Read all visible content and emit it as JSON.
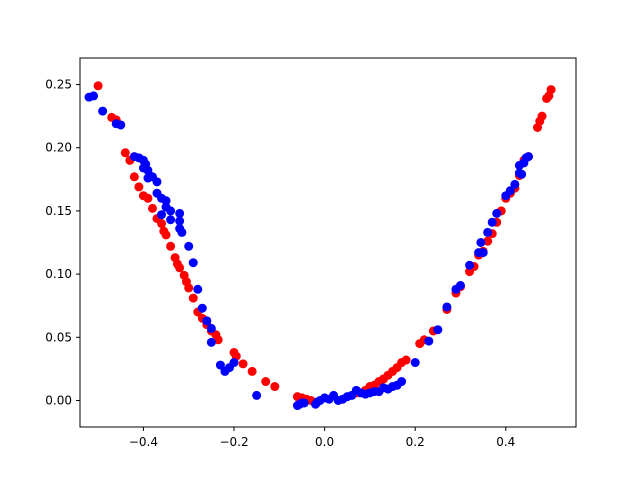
{
  "chart_data": {
    "type": "scatter",
    "title": "",
    "xlabel": "",
    "ylabel": "",
    "xlim": [
      -0.54,
      0.555
    ],
    "ylim": [
      -0.021,
      0.271
    ],
    "grid": false,
    "x_ticks": [
      -0.4,
      -0.2,
      0.0,
      0.2,
      0.4
    ],
    "x_tick_labels": [
      "−0.4",
      "−0.2",
      "0.0",
      "0.2",
      "0.4"
    ],
    "y_ticks": [
      0.0,
      0.05,
      0.1,
      0.15,
      0.2,
      0.25
    ],
    "y_tick_labels": [
      "0.00",
      "0.05",
      "0.10",
      "0.15",
      "0.20",
      "0.25"
    ],
    "series": [
      {
        "color": "#ff0000",
        "points": [
          [
            -0.5,
            0.249
          ],
          [
            -0.47,
            0.224
          ],
          [
            -0.46,
            0.222
          ],
          [
            -0.44,
            0.196
          ],
          [
            -0.43,
            0.19
          ],
          [
            -0.42,
            0.177
          ],
          [
            -0.41,
            0.169
          ],
          [
            -0.4,
            0.162
          ],
          [
            -0.39,
            0.16
          ],
          [
            -0.38,
            0.152
          ],
          [
            -0.37,
            0.144
          ],
          [
            -0.36,
            0.14
          ],
          [
            -0.355,
            0.134
          ],
          [
            -0.35,
            0.131
          ],
          [
            -0.34,
            0.122
          ],
          [
            -0.33,
            0.113
          ],
          [
            -0.325,
            0.108
          ],
          [
            -0.32,
            0.105
          ],
          [
            -0.31,
            0.099
          ],
          [
            -0.305,
            0.094
          ],
          [
            -0.3,
            0.089
          ],
          [
            -0.29,
            0.081
          ],
          [
            -0.28,
            0.07
          ],
          [
            -0.27,
            0.065
          ],
          [
            -0.26,
            0.06
          ],
          [
            -0.25,
            0.055
          ],
          [
            -0.24,
            0.052
          ],
          [
            -0.235,
            0.048
          ],
          [
            -0.2,
            0.038
          ],
          [
            -0.195,
            0.035
          ],
          [
            -0.18,
            0.029
          ],
          [
            -0.16,
            0.023
          ],
          [
            -0.13,
            0.015
          ],
          [
            -0.11,
            0.011
          ],
          [
            -0.06,
            0.003
          ],
          [
            -0.05,
            0.002
          ],
          [
            -0.04,
            0.001
          ],
          [
            -0.03,
            0.0
          ],
          [
            0.07,
            0.006
          ],
          [
            0.09,
            0.008
          ],
          [
            0.1,
            0.011
          ],
          [
            0.11,
            0.012
          ],
          [
            0.12,
            0.015
          ],
          [
            0.13,
            0.017
          ],
          [
            0.14,
            0.02
          ],
          [
            0.15,
            0.023
          ],
          [
            0.16,
            0.026
          ],
          [
            0.17,
            0.03
          ],
          [
            0.18,
            0.032
          ],
          [
            0.21,
            0.045
          ],
          [
            0.22,
            0.048
          ],
          [
            0.24,
            0.055
          ],
          [
            0.27,
            0.072
          ],
          [
            0.29,
            0.085
          ],
          [
            0.3,
            0.09
          ],
          [
            0.32,
            0.102
          ],
          [
            0.33,
            0.106
          ],
          [
            0.34,
            0.115
          ],
          [
            0.35,
            0.118
          ],
          [
            0.36,
            0.126
          ],
          [
            0.37,
            0.132
          ],
          [
            0.38,
            0.141
          ],
          [
            0.39,
            0.15
          ],
          [
            0.4,
            0.16
          ],
          [
            0.41,
            0.164
          ],
          [
            0.42,
            0.168
          ],
          [
            0.43,
            0.178
          ],
          [
            0.44,
            0.19
          ],
          [
            0.45,
            0.193
          ],
          [
            0.47,
            0.216
          ],
          [
            0.475,
            0.221
          ],
          [
            0.48,
            0.225
          ],
          [
            0.49,
            0.239
          ],
          [
            0.495,
            0.241
          ],
          [
            0.5,
            0.246
          ]
        ]
      },
      {
        "color": "#0000ff",
        "points": [
          [
            -0.52,
            0.24
          ],
          [
            -0.51,
            0.241
          ],
          [
            -0.49,
            0.229
          ],
          [
            -0.46,
            0.219
          ],
          [
            -0.45,
            0.218
          ],
          [
            -0.42,
            0.193
          ],
          [
            -0.41,
            0.192
          ],
          [
            -0.4,
            0.19
          ],
          [
            -0.395,
            0.187
          ],
          [
            -0.4,
            0.184
          ],
          [
            -0.39,
            0.182
          ],
          [
            -0.39,
            0.176
          ],
          [
            -0.38,
            0.177
          ],
          [
            -0.37,
            0.173
          ],
          [
            -0.37,
            0.164
          ],
          [
            -0.36,
            0.16
          ],
          [
            -0.35,
            0.158
          ],
          [
            -0.35,
            0.153
          ],
          [
            -0.34,
            0.15
          ],
          [
            -0.36,
            0.147
          ],
          [
            -0.32,
            0.148
          ],
          [
            -0.32,
            0.142
          ],
          [
            -0.34,
            0.143
          ],
          [
            -0.32,
            0.136
          ],
          [
            -0.315,
            0.133
          ],
          [
            -0.3,
            0.122
          ],
          [
            -0.29,
            0.109
          ],
          [
            -0.28,
            0.088
          ],
          [
            -0.27,
            0.073
          ],
          [
            -0.26,
            0.063
          ],
          [
            -0.25,
            0.057
          ],
          [
            -0.25,
            0.046
          ],
          [
            -0.23,
            0.028
          ],
          [
            -0.22,
            0.023
          ],
          [
            -0.21,
            0.026
          ],
          [
            -0.2,
            0.03
          ],
          [
            -0.15,
            0.004
          ],
          [
            -0.06,
            -0.004
          ],
          [
            -0.055,
            -0.003
          ],
          [
            -0.045,
            -0.002
          ],
          [
            -0.05,
            -0.002
          ],
          [
            -0.02,
            -0.003
          ],
          [
            -0.015,
            -0.001
          ],
          [
            -0.01,
            0.0
          ],
          [
            0.0,
            0.002
          ],
          [
            0.01,
            0.001
          ],
          [
            0.02,
            0.004
          ],
          [
            0.03,
            0.0
          ],
          [
            0.04,
            0.001
          ],
          [
            0.05,
            0.003
          ],
          [
            0.06,
            0.004
          ],
          [
            0.07,
            0.008
          ],
          [
            0.08,
            0.006
          ],
          [
            0.09,
            0.005
          ],
          [
            0.1,
            0.006
          ],
          [
            0.11,
            0.007
          ],
          [
            0.12,
            0.007
          ],
          [
            0.13,
            0.01
          ],
          [
            0.14,
            0.009
          ],
          [
            0.15,
            0.011
          ],
          [
            0.16,
            0.012
          ],
          [
            0.17,
            0.015
          ],
          [
            0.2,
            0.03
          ],
          [
            0.23,
            0.047
          ],
          [
            0.25,
            0.056
          ],
          [
            0.27,
            0.074
          ],
          [
            0.29,
            0.088
          ],
          [
            0.3,
            0.091
          ],
          [
            0.32,
            0.107
          ],
          [
            0.34,
            0.117
          ],
          [
            0.345,
            0.125
          ],
          [
            0.35,
            0.117
          ],
          [
            0.36,
            0.133
          ],
          [
            0.37,
            0.141
          ],
          [
            0.38,
            0.148
          ],
          [
            0.4,
            0.162
          ],
          [
            0.41,
            0.166
          ],
          [
            0.42,
            0.171
          ],
          [
            0.43,
            0.18
          ],
          [
            0.43,
            0.186
          ],
          [
            0.435,
            0.179
          ],
          [
            0.44,
            0.188
          ],
          [
            0.45,
            0.193
          ],
          [
            0.445,
            0.192
          ]
        ]
      }
    ]
  }
}
